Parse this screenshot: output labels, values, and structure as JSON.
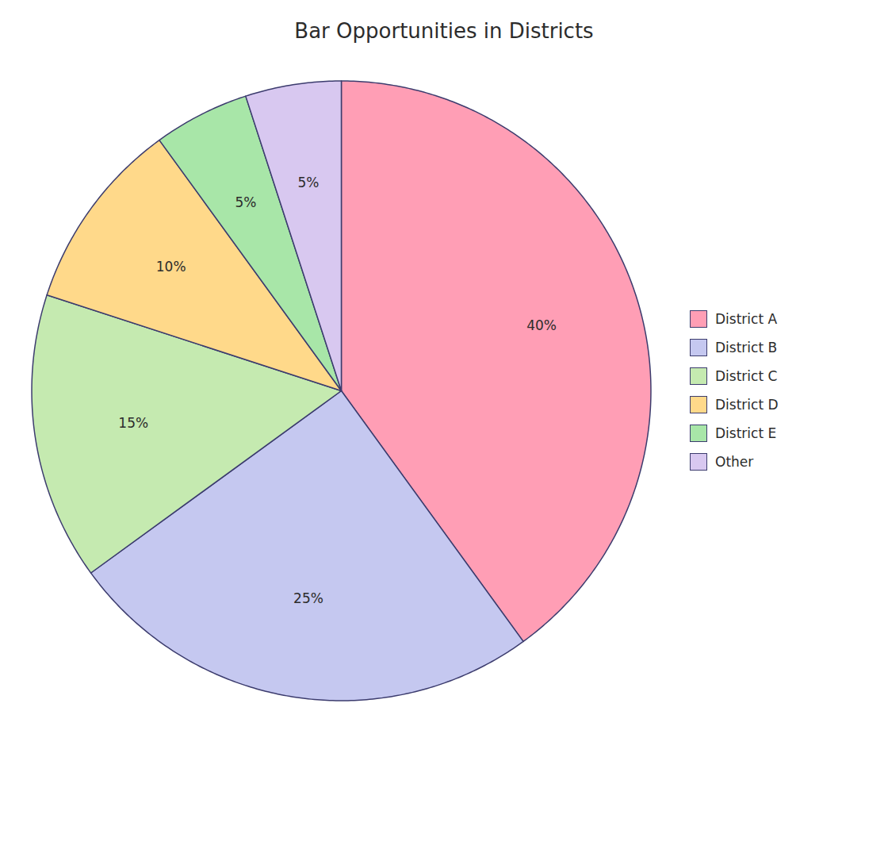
{
  "chart_data": {
    "type": "pie",
    "title": "Bar Opportunities in Districts",
    "categories": [
      "District A",
      "District B",
      "District C",
      "District D",
      "District E",
      "Other"
    ],
    "values": [
      40,
      25,
      15,
      10,
      5,
      5
    ],
    "value_labels": [
      "40%",
      "25%",
      "15%",
      "10%",
      "5%",
      "5%"
    ],
    "colors": [
      "#FF9EB5",
      "#C5C8F0",
      "#C5EAB0",
      "#FFD98A",
      "#A8E6A8",
      "#D8C8F0"
    ],
    "data_labels": true,
    "legend": "right"
  }
}
